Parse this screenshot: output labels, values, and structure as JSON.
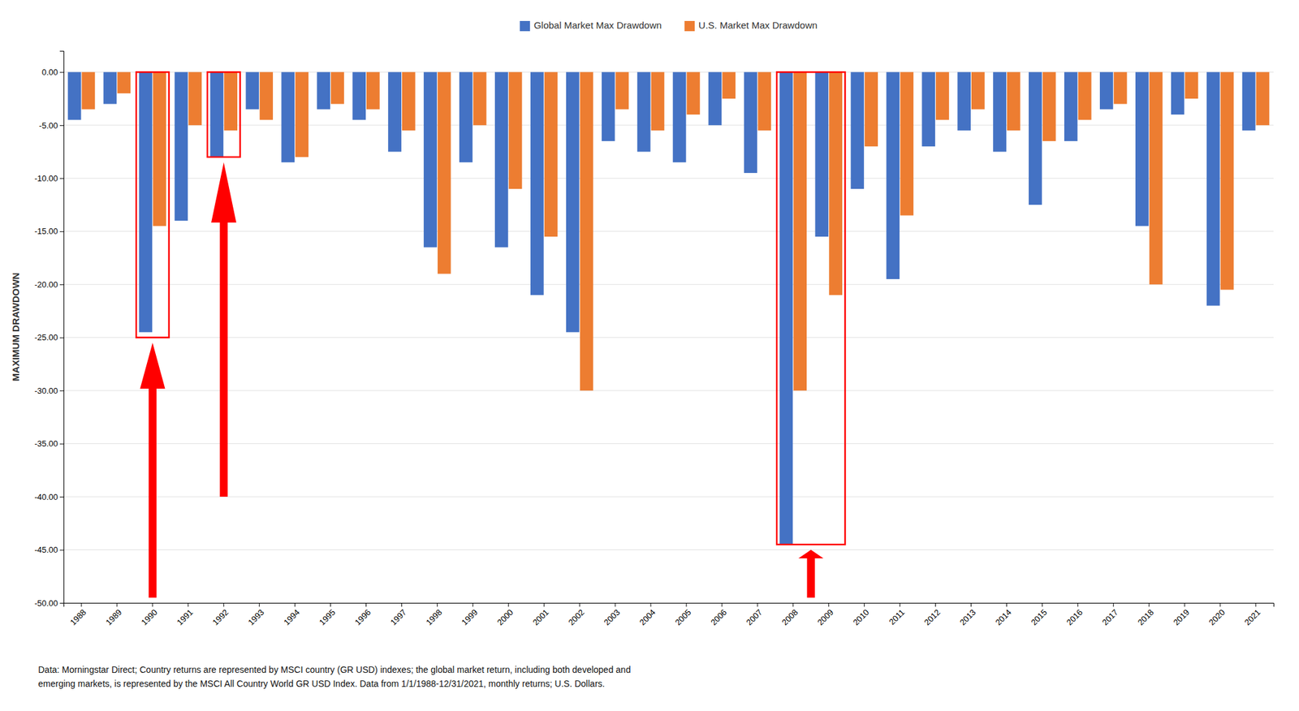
{
  "chart_data": {
    "type": "bar",
    "ylabel": "MAXIMUM DRAWDOWN",
    "categories": [
      "1988",
      "1989",
      "1990",
      "1991",
      "1992",
      "1993",
      "1994",
      "1995",
      "1996",
      "1997",
      "1998",
      "1999",
      "2000",
      "2001",
      "2002",
      "2003",
      "2004",
      "2005",
      "2006",
      "2007",
      "2008",
      "2009",
      "2010",
      "2011",
      "2012",
      "2013",
      "2014",
      "2015",
      "2016",
      "2017",
      "2018",
      "2019",
      "2020",
      "2021"
    ],
    "series": [
      {
        "name": "Global Market Max Drawdown",
        "color": "#4472C4",
        "values": [
          -4.5,
          -3.0,
          -24.5,
          -14.0,
          -8.0,
          -3.5,
          -8.5,
          -3.5,
          -4.5,
          -7.5,
          -16.5,
          -8.5,
          -16.5,
          -21.0,
          -24.5,
          -6.5,
          -7.5,
          -8.5,
          -5.0,
          -9.5,
          -44.5,
          -15.5,
          -11.0,
          -19.5,
          -7.0,
          -5.5,
          -7.5,
          -12.5,
          -6.5,
          -3.5,
          -14.5,
          -4.0,
          -22.0,
          -5.5
        ]
      },
      {
        "name": "U.S. Market Max Drawdown",
        "color": "#ED7D31",
        "values": [
          -3.5,
          -2.0,
          -14.5,
          -5.0,
          -5.5,
          -4.5,
          -8.0,
          -3.0,
          -3.5,
          -5.5,
          -19.0,
          -5.0,
          -11.0,
          -15.5,
          -30.0,
          -3.5,
          -5.5,
          -4.0,
          -2.5,
          -5.5,
          -30.0,
          -21.0,
          -7.0,
          -13.5,
          -4.5,
          -3.5,
          -5.5,
          -6.5,
          -4.5,
          -3.0,
          -20.0,
          -2.5,
          -20.5,
          -5.0
        ]
      }
    ],
    "ylim": [
      -50,
      2
    ],
    "yticks": [
      {
        "value": 0,
        "label": "0.00"
      },
      {
        "value": -5,
        "label": "-5.00"
      },
      {
        "value": -10,
        "label": "-10.00"
      },
      {
        "value": -15,
        "label": "-15.00"
      },
      {
        "value": -20,
        "label": "-20.00"
      },
      {
        "value": -25,
        "label": "-25.00"
      },
      {
        "value": -30,
        "label": "-30.00"
      },
      {
        "value": -35,
        "label": "-35.00"
      },
      {
        "value": -40,
        "label": "-40.00"
      },
      {
        "value": -45,
        "label": "-45.00"
      },
      {
        "value": -50,
        "label": "-50.00"
      }
    ],
    "grid": true,
    "legend": "top",
    "highlights": [
      {
        "categories": [
          "1990"
        ],
        "from": -25.0,
        "to": 0,
        "arrow_from": -49.5,
        "arrow_to": -25.5,
        "color": "red"
      },
      {
        "categories": [
          "1992"
        ],
        "from": -8.0,
        "to": 0,
        "arrow_from": -40.0,
        "arrow_to": -8.5,
        "color": "red"
      },
      {
        "categories": [
          "2008",
          "2009"
        ],
        "from": -44.5,
        "to": 0,
        "arrow_from": -49.5,
        "arrow_to": -45.0,
        "color": "red"
      }
    ],
    "annotations": [
      "Data: Morningstar Direct; Country returns are represented by MSCI country (GR USD) indexes; the global market return, including both developed and",
      "emerging markets, is represented by the MSCI All Country World GR USD Index. Data from 1/1/1988-12/31/2021, monthly returns; U.S. Dollars."
    ]
  }
}
